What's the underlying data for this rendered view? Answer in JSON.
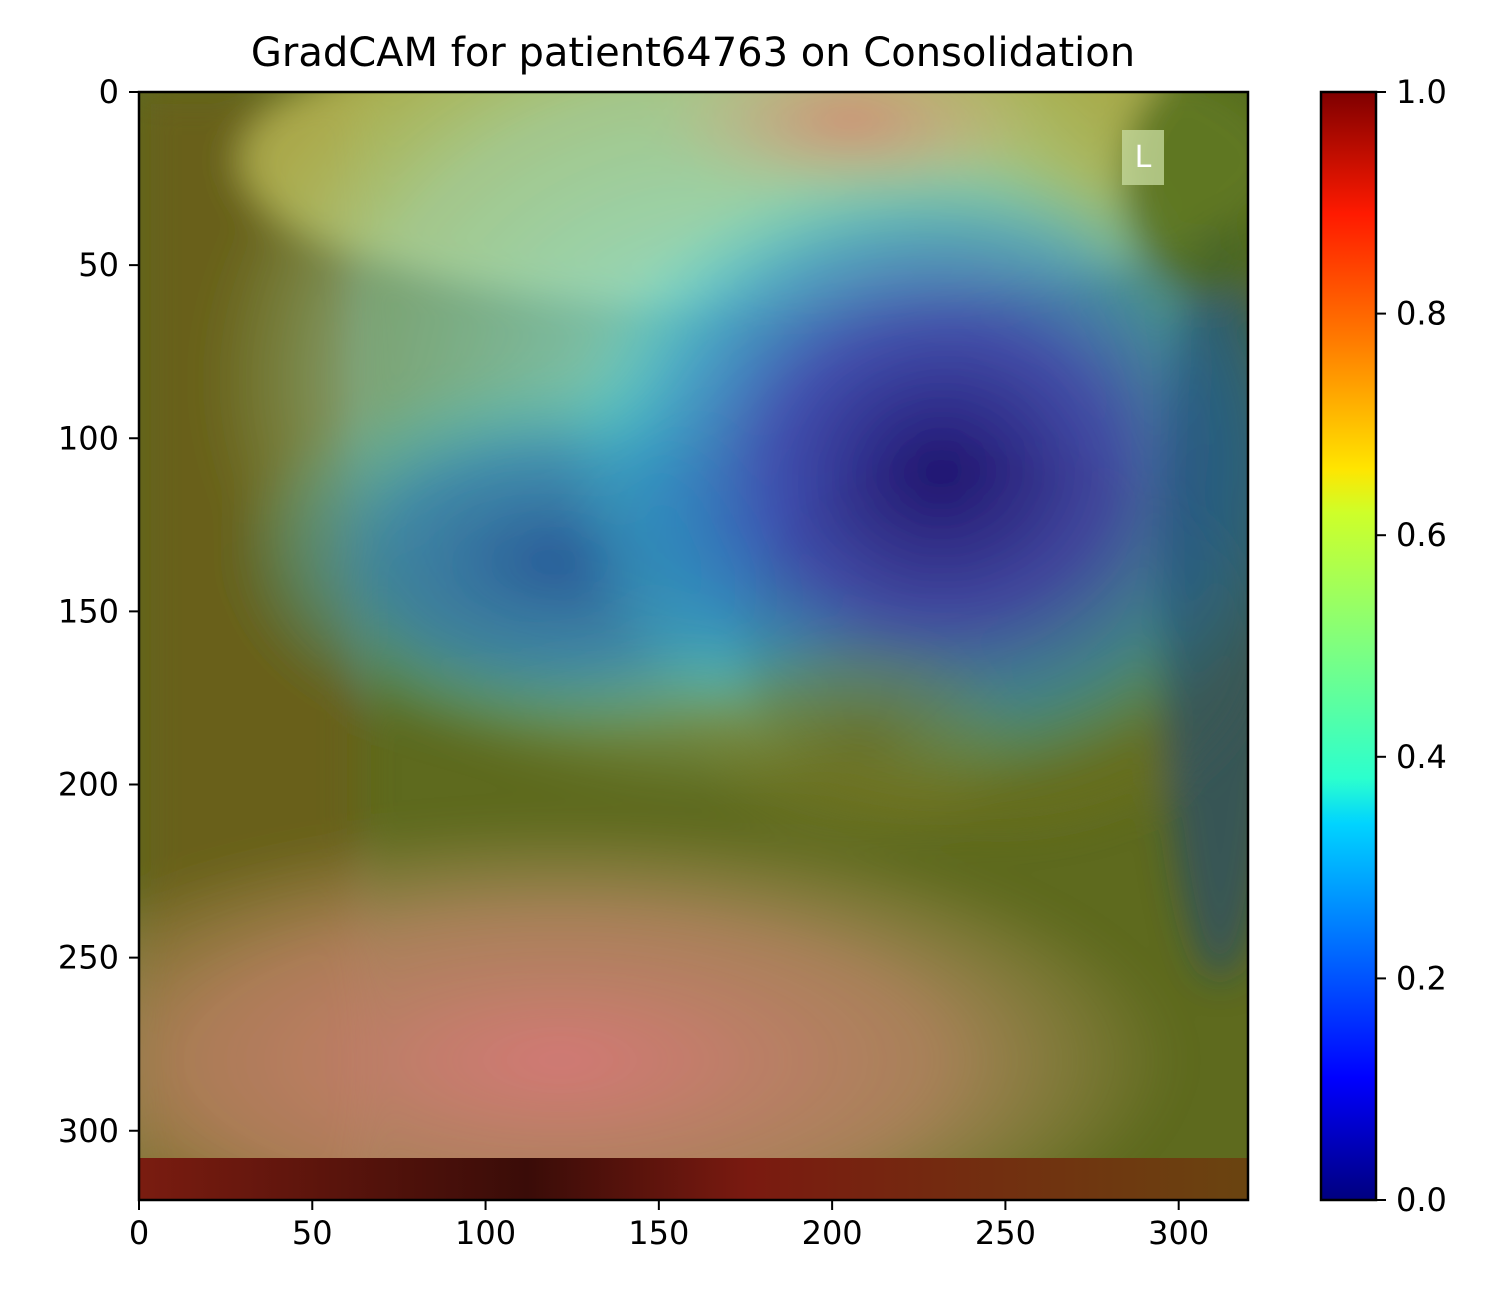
{
  "chart_data": {
    "type": "heatmap",
    "title": "GradCAM for patient64763 on Consolidation",
    "xlabel": "",
    "ylabel": "",
    "xlim": [
      0,
      320
    ],
    "ylim": [
      320,
      0
    ],
    "x_ticks": [
      0,
      50,
      100,
      150,
      200,
      250,
      300
    ],
    "y_ticks": [
      0,
      50,
      100,
      150,
      200,
      250,
      300
    ],
    "colorbar": {
      "colormap": "jet",
      "range": [
        0.0,
        1.0
      ],
      "ticks": [
        "0.0",
        "0.2",
        "0.4",
        "0.6",
        "0.8",
        "1.0"
      ]
    },
    "image_annotation": "L",
    "heat_regions": [
      {
        "label": "low activation center",
        "x": 205,
        "y": 120,
        "value": 0.05
      },
      {
        "label": "low activation left",
        "x": 95,
        "y": 150,
        "value": 0.2
      },
      {
        "label": "high activation bottom",
        "x": 120,
        "y": 290,
        "value": 0.85
      },
      {
        "label": "high activation top",
        "x": 210,
        "y": 10,
        "value": 0.75
      }
    ]
  },
  "colors": {
    "jet": [
      "#00007f",
      "#0000ff",
      "#007fff",
      "#00ffff",
      "#7fff7f",
      "#ffff00",
      "#ff7f00",
      "#ff0000",
      "#7f0000"
    ],
    "axis": "#000000"
  }
}
